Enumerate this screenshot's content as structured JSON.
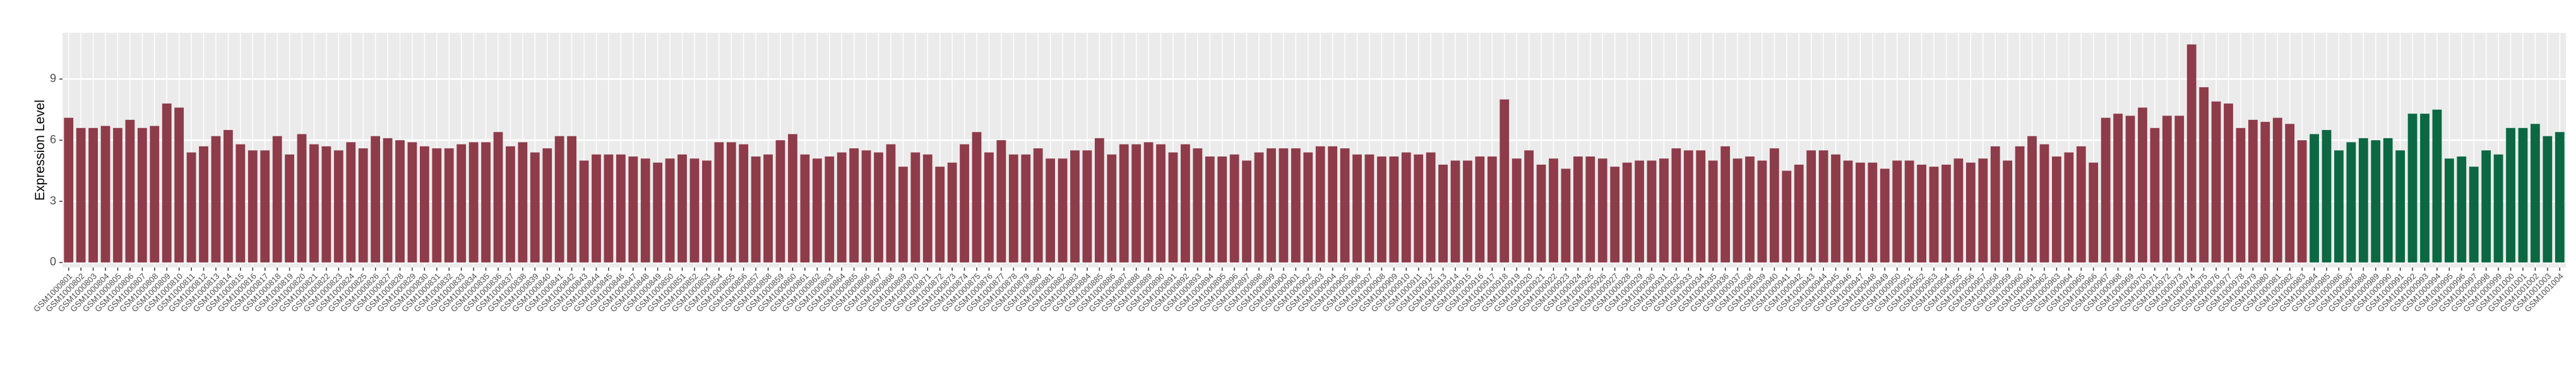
{
  "chart_data": {
    "type": "bar",
    "y_label": "Expression Level",
    "categories": [
      "GSM1000801",
      "GSM1000802",
      "GSM1000803",
      "GSM1000804",
      "GSM1000805",
      "GSM1000806",
      "GSM1000807",
      "GSM1000808",
      "GSM1000809",
      "GSM1000810",
      "GSM1000811",
      "GSM1000812",
      "GSM1000813",
      "GSM1000814",
      "GSM1000815",
      "GSM1000816",
      "GSM1000817",
      "GSM1000818",
      "GSM1000819",
      "GSM1000820",
      "GSM1000821",
      "GSM1000822",
      "GSM1000823",
      "GSM1000824",
      "GSM1000825",
      "GSM1000826",
      "GSM1000827",
      "GSM1000828",
      "GSM1000829",
      "GSM1000830",
      "GSM1000831",
      "GSM1000832",
      "GSM1000833",
      "GSM1000834",
      "GSM1000835",
      "GSM1000836",
      "GSM1000837",
      "GSM1000838",
      "GSM1000839",
      "GSM1000840",
      "GSM1000841",
      "GSM1000842",
      "GSM1000843",
      "GSM1000844",
      "GSM1000845",
      "GSM1000846",
      "GSM1000847",
      "GSM1000848",
      "GSM1000849",
      "GSM1000850",
      "GSM1000851",
      "GSM1000852",
      "GSM1000853",
      "GSM1000854",
      "GSM1000855",
      "GSM1000856",
      "GSM1000857",
      "GSM1000858",
      "GSM1000859",
      "GSM1000860",
      "GSM1000861",
      "GSM1000862",
      "GSM1000863",
      "GSM1000864",
      "GSM1000865",
      "GSM1000866",
      "GSM1000867",
      "GSM1000868",
      "GSM1000869",
      "GSM1000870",
      "GSM1000871",
      "GSM1000872",
      "GSM1000873",
      "GSM1000874",
      "GSM1000875",
      "GSM1000876",
      "GSM1000877",
      "GSM1000878",
      "GSM1000879",
      "GSM1000880",
      "GSM1000881",
      "GSM1000882",
      "GSM1000883",
      "GSM1000884",
      "GSM1000885",
      "GSM1000886",
      "GSM1000887",
      "GSM1000888",
      "GSM1000889",
      "GSM1000890",
      "GSM1000891",
      "GSM1000892",
      "GSM1000893",
      "GSM1000894",
      "GSM1000895",
      "GSM1000896",
      "GSM1000897",
      "GSM1000898",
      "GSM1000899",
      "GSM1000900",
      "GSM1000901",
      "GSM1000902",
      "GSM1000903",
      "GSM1000904",
      "GSM1000905",
      "GSM1000906",
      "GSM1000907",
      "GSM1000908",
      "GSM1000909",
      "GSM1000910",
      "GSM1000911",
      "GSM1000912",
      "GSM1000913",
      "GSM1000914",
      "GSM1000915",
      "GSM1000916",
      "GSM1000917",
      "GSM1000918",
      "GSM1000919",
      "GSM1000920",
      "GSM1000921",
      "GSM1000922",
      "GSM1000923",
      "GSM1000924",
      "GSM1000925",
      "GSM1000926",
      "GSM1000927",
      "GSM1000928",
      "GSM1000929",
      "GSM1000930",
      "GSM1000931",
      "GSM1000932",
      "GSM1000933",
      "GSM1000934",
      "GSM1000935",
      "GSM1000936",
      "GSM1000937",
      "GSM1000938",
      "GSM1000939",
      "GSM1000940",
      "GSM1000941",
      "GSM1000942",
      "GSM1000943",
      "GSM1000944",
      "GSM1000945",
      "GSM1000946",
      "GSM1000947",
      "GSM1000948",
      "GSM1000949",
      "GSM1000950",
      "GSM1000951",
      "GSM1000952",
      "GSM1000953",
      "GSM1000954",
      "GSM1000955",
      "GSM1000956",
      "GSM1000957",
      "GSM1000958",
      "GSM1000959",
      "GSM1000960",
      "GSM1000961",
      "GSM1000962",
      "GSM1000963",
      "GSM1000964",
      "GSM1000965",
      "GSM1000966",
      "GSM1000967",
      "GSM1000968",
      "GSM1000969",
      "GSM1000970",
      "GSM1000971",
      "GSM1000972",
      "GSM1000973",
      "GSM1000974",
      "GSM1000975",
      "GSM1000976",
      "GSM1000977",
      "GSM1000978",
      "GSM1000979",
      "GSM1000980",
      "GSM1000981",
      "GSM1000982",
      "GSM1000983",
      "GSM1000984",
      "GSM1000985",
      "GSM1000986",
      "GSM1000987",
      "GSM1000988",
      "GSM1000989",
      "GSM1000990",
      "GSM1000991",
      "GSM1000992",
      "GSM1000993",
      "GSM1000994",
      "GSM1000995",
      "GSM1000996",
      "GSM1000997",
      "GSM1000998",
      "GSM1000999",
      "GSM1001000",
      "GSM1001001",
      "GSM1001002",
      "GSM1001003",
      "GSM1001004"
    ],
    "series": [
      {
        "color": "#8e3b4a",
        "values": [
          7.1,
          6.6,
          6.6,
          6.7,
          6.6,
          7.0,
          6.6,
          6.7,
          7.8,
          7.6,
          5.4,
          5.7,
          6.2,
          6.5,
          5.8,
          5.5,
          5.5,
          6.2,
          5.3,
          6.3,
          5.8,
          5.7,
          5.5,
          5.9,
          5.6,
          6.2,
          6.1,
          6.0,
          5.9,
          5.7,
          5.6,
          5.6,
          5.8,
          5.9,
          5.9,
          6.4,
          5.7,
          5.9,
          5.4,
          5.6,
          6.2,
          6.2,
          5.0,
          5.3,
          5.3,
          5.3,
          5.2,
          5.1,
          4.9,
          5.1,
          5.3,
          5.1,
          5.0,
          5.9,
          5.9,
          5.8,
          5.2,
          5.3,
          6.0,
          6.3,
          5.3,
          5.1,
          5.2,
          5.4,
          5.6,
          5.5,
          5.4,
          5.8,
          4.7,
          5.4,
          5.3,
          4.7,
          4.9,
          5.8,
          6.4,
          5.4,
          6.0,
          5.3,
          5.3,
          5.6,
          5.1,
          5.1,
          5.5,
          5.5,
          6.1,
          5.3,
          5.8,
          5.8,
          5.9,
          5.8,
          5.4,
          5.8,
          5.6,
          5.2,
          5.2,
          5.3,
          5.0,
          5.4,
          5.6,
          5.6,
          5.6,
          5.4,
          5.7,
          5.7,
          5.6,
          5.3,
          5.3,
          5.2,
          5.2,
          5.4,
          5.3,
          5.4,
          4.8,
          5.0,
          5.0,
          5.2,
          5.2,
          8.0,
          5.1,
          5.5,
          4.8,
          5.1,
          4.6,
          5.2,
          5.2,
          5.1,
          4.7,
          4.9,
          5.0,
          5.0,
          5.1,
          5.6,
          5.5,
          5.5,
          5.0,
          5.7,
          5.1,
          5.2,
          5.0,
          5.6,
          4.5,
          4.8,
          5.5,
          5.5,
          5.3,
          5.0,
          4.9,
          4.9,
          4.6,
          5.0,
          5.0,
          4.8,
          4.7,
          4.8,
          5.1,
          4.9,
          5.1,
          5.7,
          5.0,
          5.7,
          6.2,
          5.8,
          5.2,
          5.4,
          5.7,
          4.9,
          7.1,
          7.3,
          7.2,
          7.6,
          6.6,
          7.2,
          7.2,
          10.7,
          8.6,
          7.9,
          7.8,
          6.6,
          7.0,
          6.9,
          7.1,
          6.8,
          6.0,
          null,
          null,
          null,
          null,
          null,
          null,
          null,
          null,
          null,
          null,
          null,
          null,
          null,
          null,
          null,
          null,
          null,
          null,
          null,
          null,
          null
        ]
      },
      {
        "color": "#0b6842",
        "values": [
          null,
          null,
          null,
          null,
          null,
          null,
          null,
          null,
          null,
          null,
          null,
          null,
          null,
          null,
          null,
          null,
          null,
          null,
          null,
          null,
          null,
          null,
          null,
          null,
          null,
          null,
          null,
          null,
          null,
          null,
          null,
          null,
          null,
          null,
          null,
          null,
          null,
          null,
          null,
          null,
          null,
          null,
          null,
          null,
          null,
          null,
          null,
          null,
          null,
          null,
          null,
          null,
          null,
          null,
          null,
          null,
          null,
          null,
          null,
          null,
          null,
          null,
          null,
          null,
          null,
          null,
          null,
          null,
          null,
          null,
          null,
          null,
          null,
          null,
          null,
          null,
          null,
          null,
          null,
          null,
          null,
          null,
          null,
          null,
          null,
          null,
          null,
          null,
          null,
          null,
          null,
          null,
          null,
          null,
          null,
          null,
          null,
          null,
          null,
          null,
          null,
          null,
          null,
          null,
          null,
          null,
          null,
          null,
          null,
          null,
          null,
          null,
          null,
          null,
          null,
          null,
          null,
          null,
          null,
          null,
          null,
          null,
          null,
          null,
          null,
          null,
          null,
          null,
          null,
          null,
          null,
          null,
          null,
          null,
          null,
          null,
          null,
          null,
          null,
          null,
          null,
          null,
          null,
          null,
          null,
          null,
          null,
          null,
          null,
          null,
          null,
          null,
          null,
          null,
          null,
          null,
          null,
          null,
          null,
          null,
          null,
          null,
          null,
          null,
          null,
          null,
          null,
          null,
          null,
          null,
          null,
          null,
          null,
          null,
          null,
          null,
          null,
          null,
          null,
          null,
          null,
          null,
          null,
          6.3,
          6.5,
          5.5,
          5.9,
          6.1,
          6.0,
          6.1,
          5.5,
          7.3,
          7.3,
          7.5,
          5.1,
          5.2,
          4.7,
          5.5,
          5.3,
          6.6,
          6.6,
          6.8,
          6.2,
          6.4
        ]
      }
    ],
    "ylim": [
      -0.25,
      11.27
    ],
    "yticks": [
      0,
      3,
      6,
      9
    ],
    "grid": true
  }
}
